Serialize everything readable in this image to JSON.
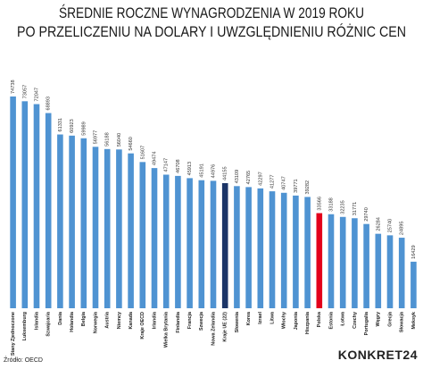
{
  "chart_data": {
    "type": "bar",
    "title_lines": [
      "ŚREDNIE ROCZNE WYNAGRODZENIA W 2019 ROKU",
      "PO PRZELICZENIU NA DOLARY I UWZGLĘDNIENIU RÓŻNIC CEN"
    ],
    "categories": [
      "Stany Zjednoczone",
      "Luksemburg",
      "Islandia",
      "Szwajcaria",
      "Dania",
      "Holandia",
      "Belgia",
      "Norwegia",
      "Austria",
      "Niemcy",
      "Kanada",
      "Kraje OECD",
      "Irlandia",
      "Wielka Brytania",
      "Finlandia",
      "Francja",
      "Szwecja",
      "Nowa Zelandia",
      "Kraje UE (22)",
      "Słowenia",
      "Korea",
      "Izrael",
      "Litwa",
      "Włochy",
      "Japonia",
      "Hiszpania",
      "Polska",
      "Estonia",
      "Łotwa",
      "Czechy",
      "Portugalia",
      "Węgry",
      "Grecja",
      "Słowacja",
      "Meksyk"
    ],
    "values": [
      74738,
      73057,
      72047,
      68893,
      61331,
      60923,
      59989,
      56977,
      56188,
      56040,
      54660,
      51607,
      49474,
      47147,
      46708,
      45913,
      45191,
      44976,
      44155,
      43109,
      42765,
      42297,
      41277,
      40747,
      39771,
      39282,
      33566,
      33188,
      32235,
      31771,
      29740,
      26284,
      25740,
      24895,
      16429
    ],
    "colors": [
      "#4f93d2",
      "#4f93d2",
      "#4f93d2",
      "#4f93d2",
      "#4f93d2",
      "#4f93d2",
      "#4f93d2",
      "#4f93d2",
      "#4f93d2",
      "#4f93d2",
      "#4f93d2",
      "#4f93d2",
      "#4f93d2",
      "#4f93d2",
      "#4f93d2",
      "#4f93d2",
      "#4f93d2",
      "#4f93d2",
      "#1c3567",
      "#4f93d2",
      "#4f93d2",
      "#4f93d2",
      "#4f93d2",
      "#4f93d2",
      "#4f93d2",
      "#4f93d2",
      "#e3001b",
      "#4f93d2",
      "#4f93d2",
      "#4f93d2",
      "#4f93d2",
      "#4f93d2",
      "#4f93d2",
      "#4f93d2",
      "#4f93d2"
    ],
    "source": "Źródło: OECD",
    "logo": "KONKRET24"
  }
}
